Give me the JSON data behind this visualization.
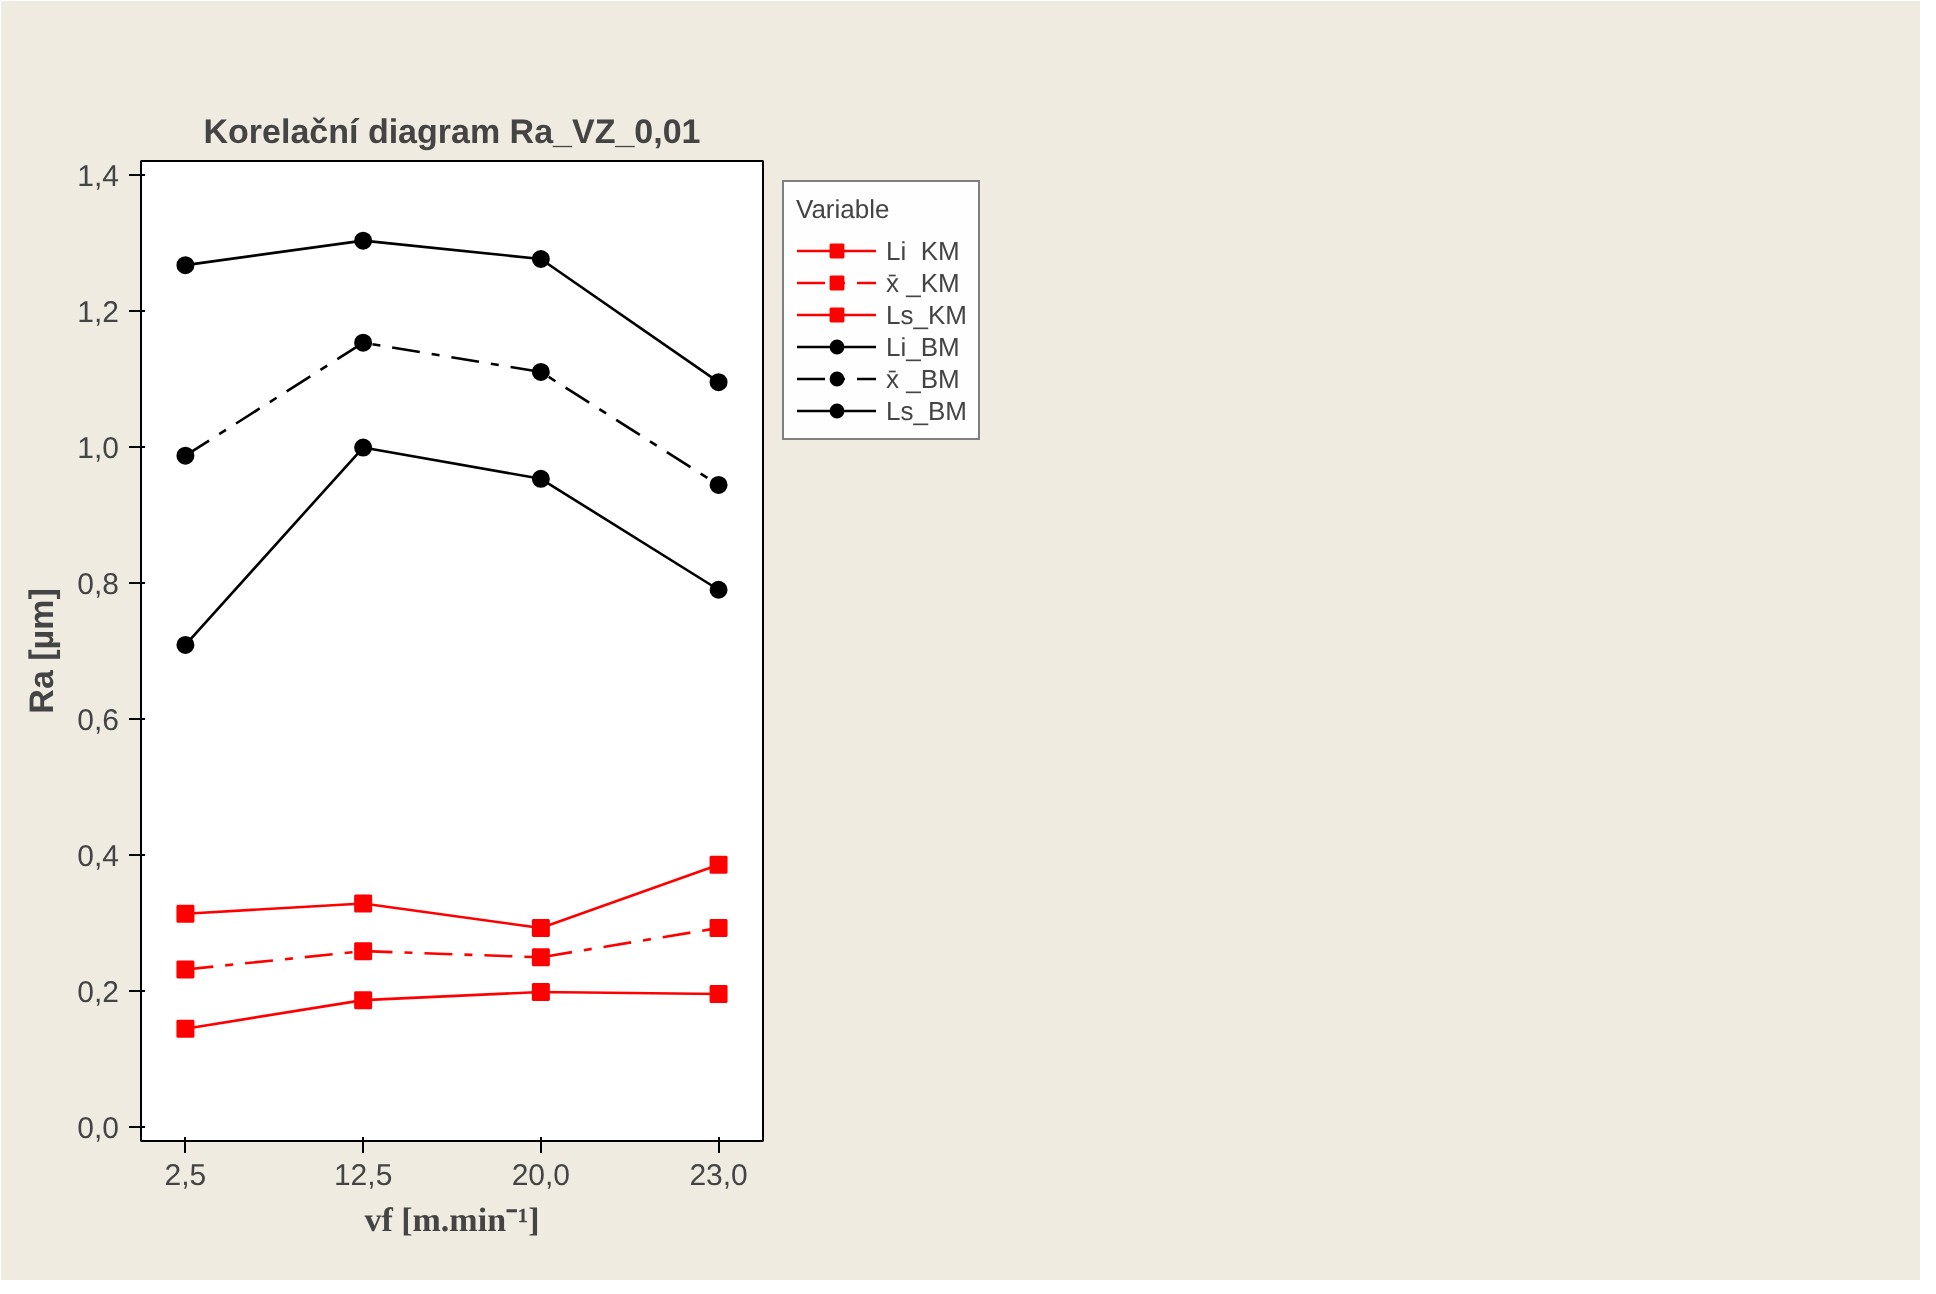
{
  "chart_data": {
    "type": "line",
    "title": "Korelační diagram Ra_VZ_0,01",
    "xlabel": "vf [m.min⁻¹]",
    "ylabel": "Ra [µm]",
    "legend_title": "Variable",
    "categories": [
      "2,5",
      "12,5",
      "20,0",
      "23,0"
    ],
    "ylim": [
      -0.02,
      1.42
    ],
    "yticks": [
      {
        "value": 0,
        "label": "0,0"
      },
      {
        "value": 0.2,
        "label": "0,2"
      },
      {
        "value": 0.4,
        "label": "0,4"
      },
      {
        "value": 0.6,
        "label": "0,6"
      },
      {
        "value": 0.8,
        "label": "0,8"
      },
      {
        "value": 1.0,
        "label": "1,0"
      },
      {
        "value": 1.2,
        "label": "1,2"
      },
      {
        "value": 1.4,
        "label": "1,4"
      }
    ],
    "grid": false,
    "legend": "top right",
    "series": [
      {
        "name": "Li  KM",
        "color": "#ff0000",
        "marker": "square",
        "line_style": "solid",
        "values": [
          0.145,
          0.187,
          0.199,
          0.196
        ]
      },
      {
        "name": "x̄ _KM",
        "color": "#ff0000",
        "marker": "square",
        "line_style": "dashed",
        "values": [
          0.232,
          0.259,
          0.25,
          0.293
        ]
      },
      {
        "name": "Ls_KM",
        "color": "#ff0000",
        "marker": "square",
        "line_style": "solid",
        "values": [
          0.314,
          0.329,
          0.293,
          0.386
        ]
      },
      {
        "name": "Li_BM",
        "color": "#000000",
        "marker": "circle",
        "line_style": "solid",
        "values": [
          0.709,
          0.999,
          0.953,
          0.79
        ]
      },
      {
        "name": "x̄ _BM",
        "color": "#000000",
        "marker": "circle",
        "line_style": "dashed",
        "values": [
          0.987,
          1.153,
          1.11,
          0.944
        ]
      },
      {
        "name": "Ls_BM",
        "color": "#000000",
        "marker": "circle",
        "line_style": "solid",
        "values": [
          1.267,
          1.303,
          1.276,
          1.095
        ]
      }
    ]
  }
}
